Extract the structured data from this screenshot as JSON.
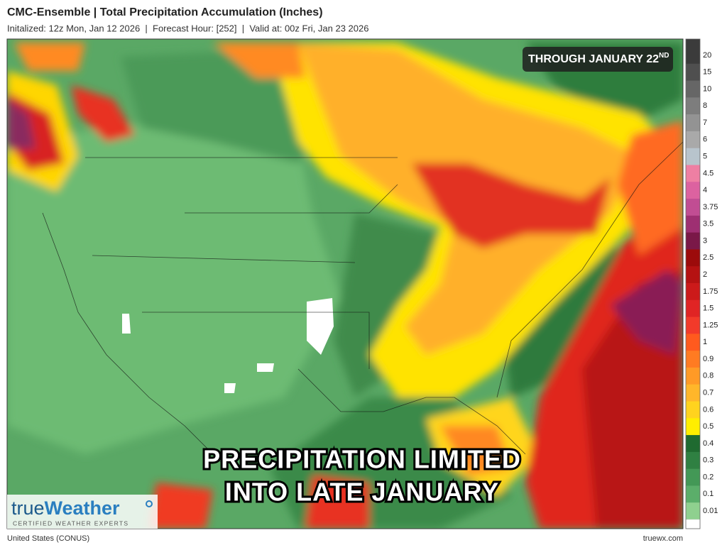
{
  "header": {
    "title": "CMC-Ensemble | Total Precipitation Accumulation (Inches)",
    "subtitle": "Initalized: 12z Mon, Jan 12 2026  |  Forecast Hour: [252]  |  Valid at: 00z Fri, Jan 23 2026"
  },
  "map": {
    "badge": {
      "text": "THROUGH JANUARY 22",
      "superscript": "ND"
    },
    "headline": [
      "PRECIPITATION LIMITED",
      "INTO LATE JANUARY"
    ]
  },
  "legend": {
    "items": [
      {
        "label": "20",
        "color": "#3b3b3b"
      },
      {
        "label": "15",
        "color": "#4f4f4f"
      },
      {
        "label": "10",
        "color": "#666666"
      },
      {
        "label": "8",
        "color": "#7d7d7d"
      },
      {
        "label": "7",
        "color": "#939393"
      },
      {
        "label": "6",
        "color": "#a9a9a9"
      },
      {
        "label": "5",
        "color": "#b8c4cc"
      },
      {
        "label": "4.5",
        "color": "#ee7fa3"
      },
      {
        "label": "4",
        "color": "#dc62a0"
      },
      {
        "label": "3.75",
        "color": "#c14d93"
      },
      {
        "label": "3.5",
        "color": "#9e2f72"
      },
      {
        "label": "3",
        "color": "#7a1848"
      },
      {
        "label": "2.5",
        "color": "#9c0b0b"
      },
      {
        "label": "2",
        "color": "#b51212"
      },
      {
        "label": "1.75",
        "color": "#cc1a1a"
      },
      {
        "label": "1.5",
        "color": "#e02424"
      },
      {
        "label": "1.25",
        "color": "#f23a2a"
      },
      {
        "label": "1",
        "color": "#ff5a1e"
      },
      {
        "label": "0.9",
        "color": "#ff7b22"
      },
      {
        "label": "0.8",
        "color": "#ff9a26"
      },
      {
        "label": "0.7",
        "color": "#ffb62a"
      },
      {
        "label": "0.6",
        "color": "#ffd31e"
      },
      {
        "label": "0.5",
        "color": "#ffee00"
      },
      {
        "label": "0.4",
        "color": "#1f6a30"
      },
      {
        "label": "0.3",
        "color": "#2f8042"
      },
      {
        "label": "0.2",
        "color": "#439856"
      },
      {
        "label": "0.1",
        "color": "#5bae6a"
      },
      {
        "label": "0.01",
        "color": "#8fd08f"
      }
    ]
  },
  "logo": {
    "part1": "true",
    "part2": "Weather",
    "tagline": "CERTIFIED WEATHER EXPERTS"
  },
  "footer": {
    "region": "United States (CONUS)",
    "site": "truewx.com"
  }
}
